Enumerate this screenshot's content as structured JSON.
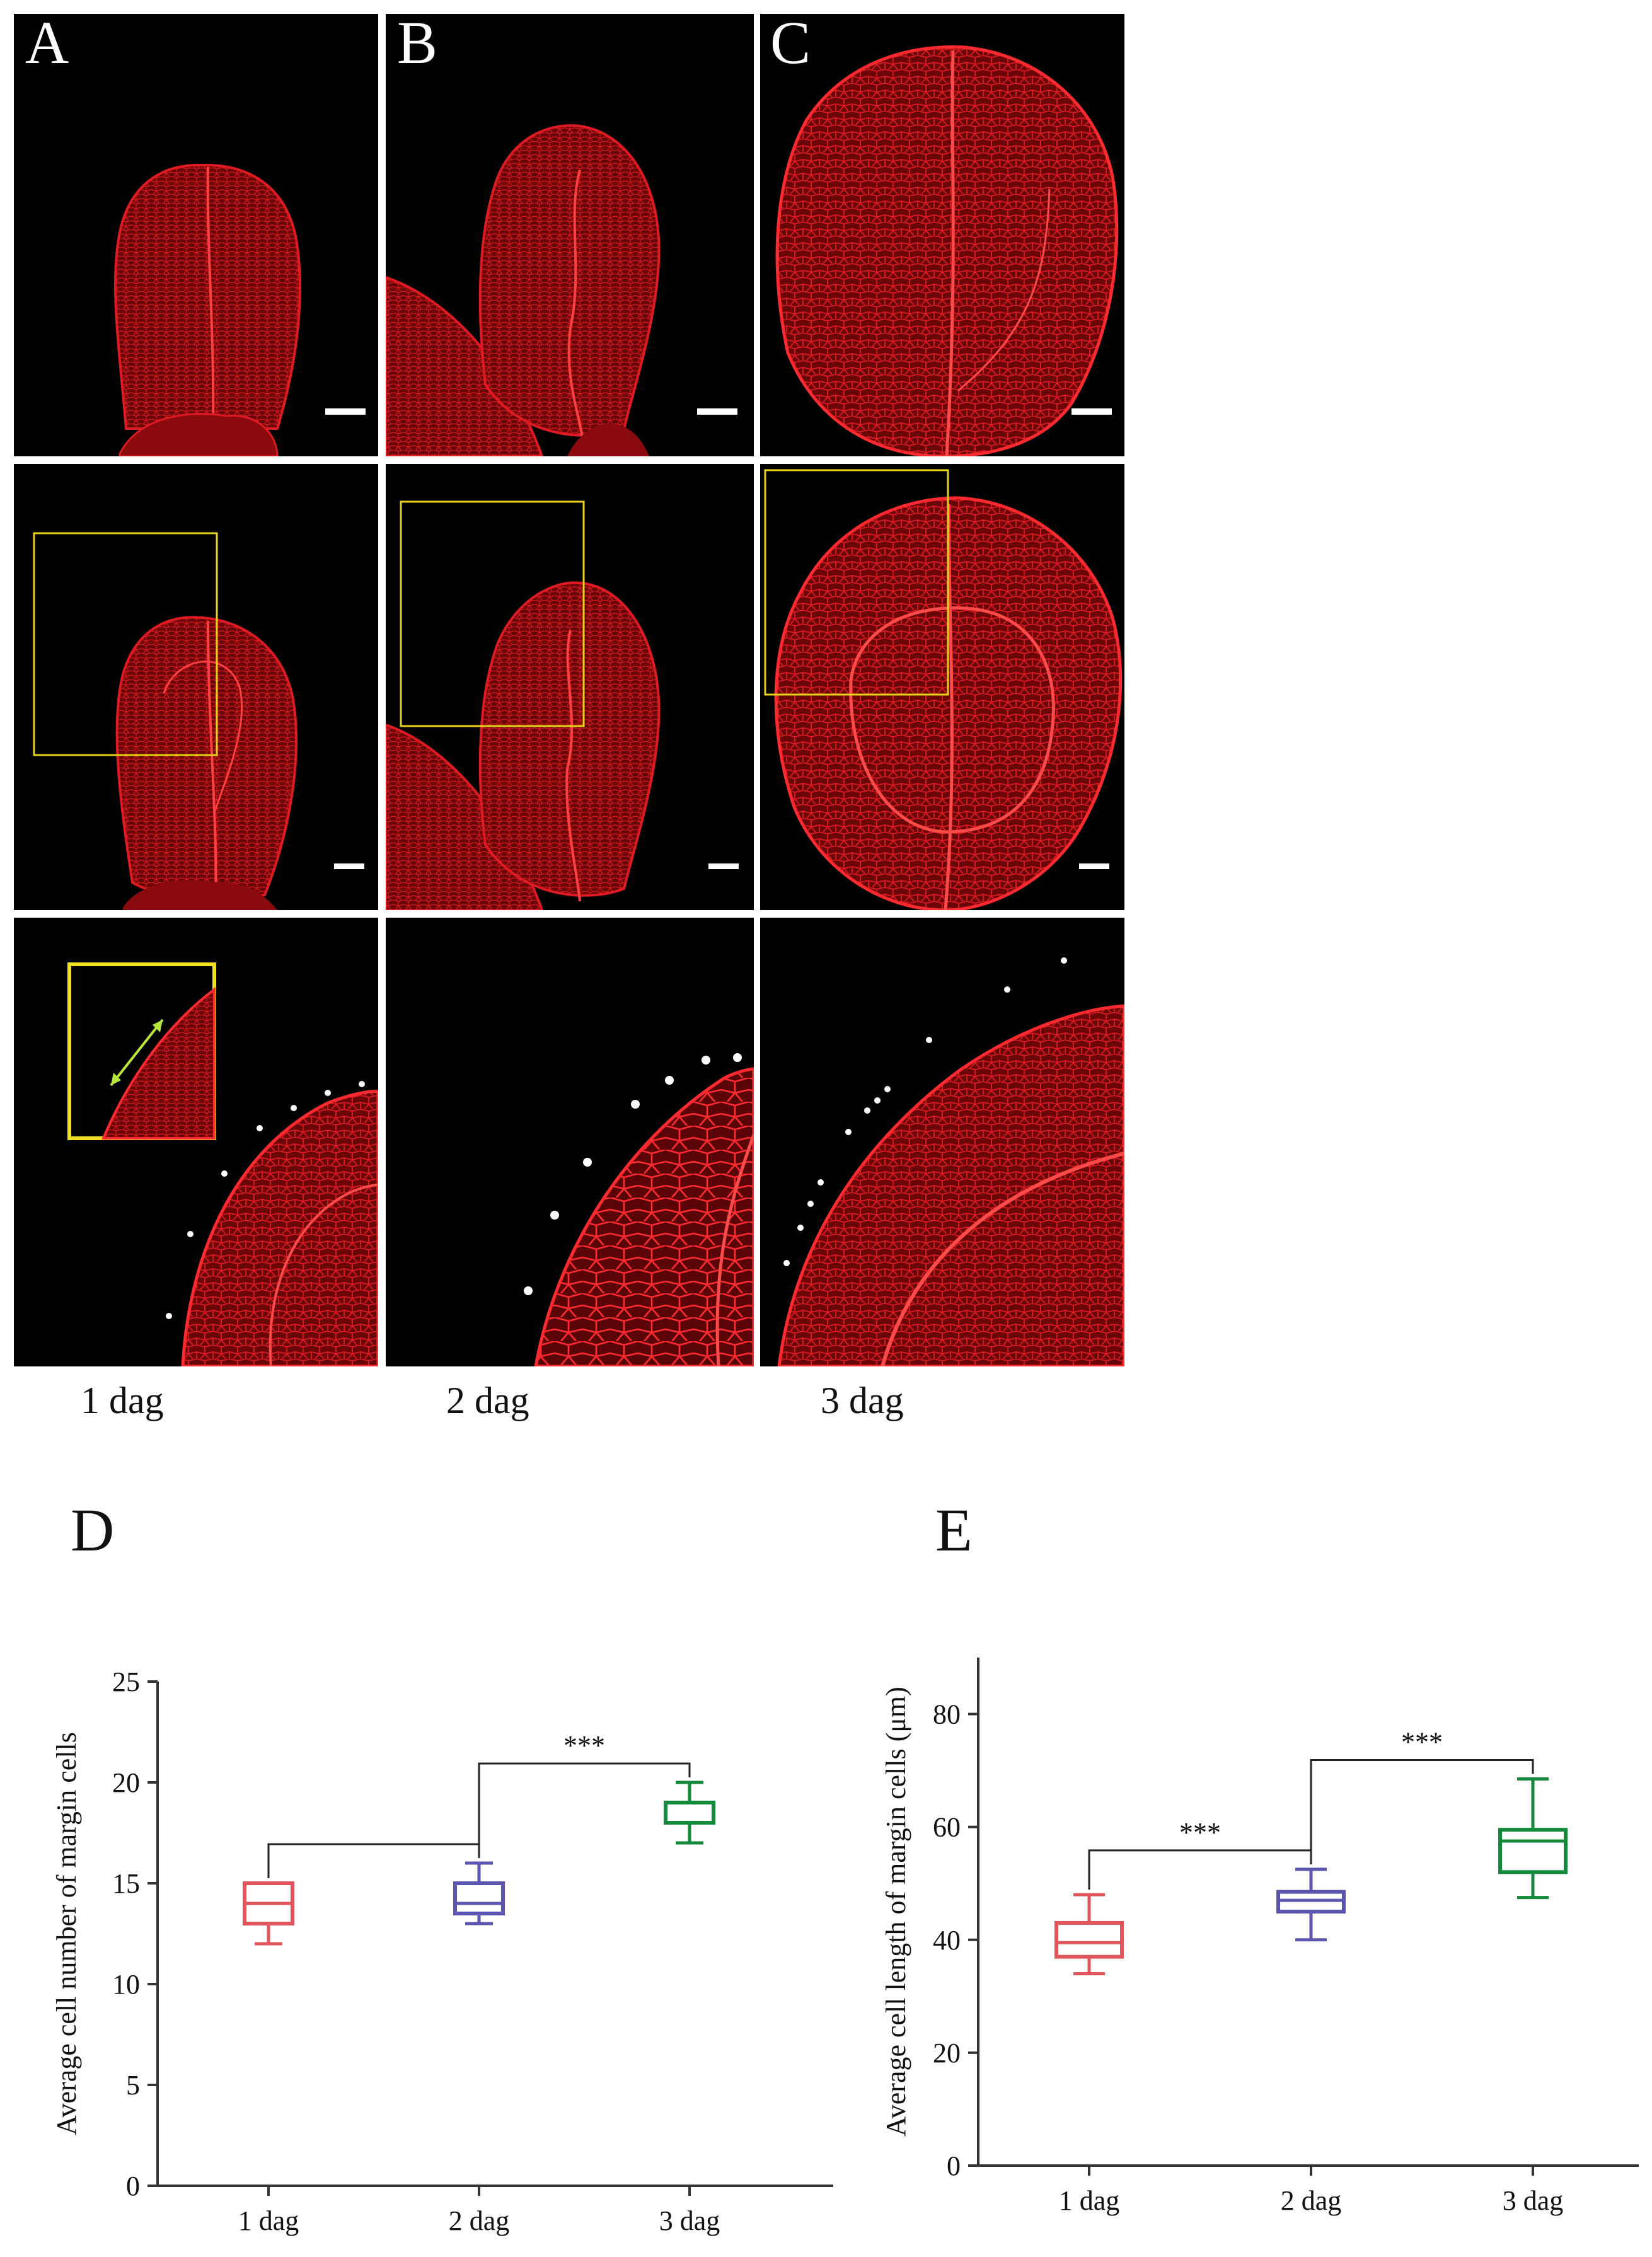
{
  "panels": {
    "letters": [
      "A",
      "B",
      "C"
    ],
    "column_labels": [
      "1 dag",
      "2 dag",
      "3 dag"
    ]
  },
  "colors": {
    "micrograph_bg": "#000000",
    "tissue": "#d8131a",
    "highlight_box": "#e6d21a",
    "inset_arrow": "#b8e63a",
    "series_1dag": "#e0565b",
    "series_2dag": "#5b56b0",
    "series_3dag": "#138a3a"
  },
  "chart_data": [
    {
      "panel": "D",
      "type": "box",
      "categories": [
        "1 dag",
        "2 dag",
        "3 dag"
      ],
      "boxes": [
        {
          "min": 12,
          "q1": 13,
          "median": 14,
          "q3": 15,
          "max": 15
        },
        {
          "min": 13,
          "q1": 13.5,
          "median": 14,
          "q3": 15,
          "max": 16
        },
        {
          "min": 17,
          "q1": 18,
          "median": 18,
          "q3": 19,
          "max": 20
        }
      ],
      "ylabel": "Average cell  number of margin cells",
      "ylim": [
        0,
        25
      ],
      "yticks": [
        0,
        5,
        10,
        15,
        20,
        25
      ],
      "comparisons": [
        {
          "from": 0,
          "to": 1,
          "label": ""
        },
        {
          "from": 1,
          "to": 2,
          "label": "***"
        }
      ]
    },
    {
      "panel": "E",
      "type": "box",
      "categories": [
        "1 dag",
        "2 dag",
        "3 dag"
      ],
      "boxes": [
        {
          "min": 34,
          "q1": 37,
          "median": 39.5,
          "q3": 43,
          "max": 48
        },
        {
          "min": 40,
          "q1": 45,
          "median": 47,
          "q3": 48.5,
          "max": 52.5
        },
        {
          "min": 47.5,
          "q1": 52,
          "median": 57.5,
          "q3": 59.5,
          "max": 68.5
        }
      ],
      "ylabel": "Average cell length of margin cells (μm)",
      "ylim": [
        0,
        90
      ],
      "yticks": [
        0,
        20,
        40,
        60,
        80
      ],
      "comparisons": [
        {
          "from": 0,
          "to": 1,
          "label": "***"
        },
        {
          "from": 1,
          "to": 2,
          "label": "***"
        }
      ]
    }
  ]
}
